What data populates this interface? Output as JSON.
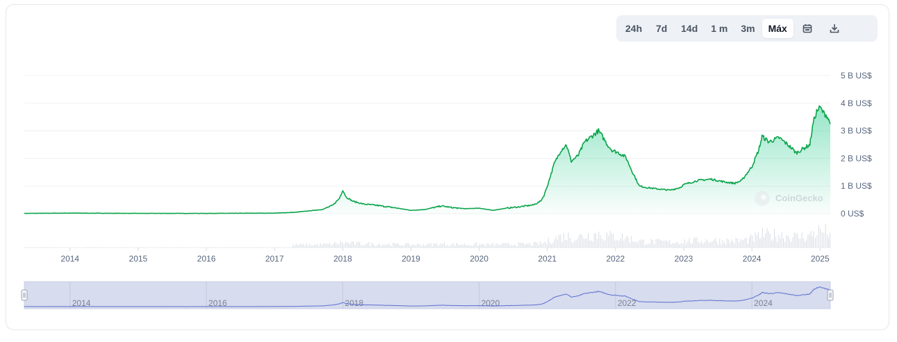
{
  "toolbar": {
    "ranges": [
      "24h",
      "7d",
      "14d",
      "1 m",
      "3m",
      "Máx"
    ],
    "active": "Máx",
    "icons": [
      "calendar-icon",
      "download-icon"
    ]
  },
  "watermark": "CoinGecko",
  "colors": {
    "line": "#0aa44a",
    "fill_top": "#16c784",
    "volume": "#d8dce3",
    "navigator_fill": "#d7dcee",
    "navigator_line": "#5b6fd0",
    "axis_text": "#58667e",
    "grid": "#eef0f3"
  },
  "chart_data": {
    "type": "area",
    "xlabel": "",
    "ylabel": "",
    "xlim": [
      2013.33,
      2025.15
    ],
    "ylim": [
      0,
      5
    ],
    "y_ticks": [
      "0 US$",
      "1 B US$",
      "2 B US$",
      "3 B US$",
      "4 B US$",
      "5 B US$"
    ],
    "x_ticks": [
      "2014",
      "2015",
      "2016",
      "2017",
      "2018",
      "2019",
      "2020",
      "2021",
      "2022",
      "2023",
      "2024",
      "2025"
    ],
    "navigator_ticks": [
      "2014",
      "2016",
      "2018",
      "2020",
      "2022",
      "2024"
    ],
    "series": [
      {
        "x": [
          2013.33,
          2014.0,
          2015.0,
          2016.0,
          2017.0,
          2017.3,
          2017.5,
          2017.7,
          2017.85,
          2017.95,
          2018.0,
          2018.05,
          2018.15,
          2018.3,
          2018.5,
          2018.8,
          2019.0,
          2019.2,
          2019.45,
          2019.6,
          2019.8,
          2020.0,
          2020.2,
          2020.4,
          2020.6,
          2020.8,
          2020.9,
          2020.95,
          2021.0,
          2021.1,
          2021.2,
          2021.28,
          2021.35,
          2021.45,
          2021.55,
          2021.65,
          2021.75,
          2021.82,
          2021.88,
          2021.95,
          2022.05,
          2022.15,
          2022.25,
          2022.35,
          2022.45,
          2022.6,
          2022.8,
          2022.95,
          2023.0,
          2023.2,
          2023.4,
          2023.6,
          2023.75,
          2023.85,
          2024.0,
          2024.1,
          2024.15,
          2024.25,
          2024.4,
          2024.55,
          2024.65,
          2024.75,
          2024.85,
          2024.9,
          2024.95,
          2025.0,
          2025.05,
          2025.1,
          2025.15
        ],
        "values": [
          0.01,
          0.02,
          0.01,
          0.01,
          0.02,
          0.05,
          0.1,
          0.15,
          0.3,
          0.55,
          0.85,
          0.6,
          0.45,
          0.35,
          0.3,
          0.2,
          0.12,
          0.15,
          0.28,
          0.22,
          0.18,
          0.2,
          0.12,
          0.2,
          0.25,
          0.32,
          0.45,
          0.65,
          1.0,
          1.8,
          2.3,
          2.5,
          1.9,
          2.1,
          2.6,
          2.8,
          3.0,
          2.75,
          2.5,
          2.3,
          2.2,
          2.05,
          1.5,
          1.0,
          0.95,
          0.9,
          0.85,
          0.95,
          1.05,
          1.2,
          1.25,
          1.15,
          1.1,
          1.2,
          1.7,
          2.3,
          2.8,
          2.6,
          2.75,
          2.45,
          2.2,
          2.35,
          2.5,
          3.3,
          3.7,
          3.85,
          3.65,
          3.55,
          3.25
        ]
      }
    ]
  }
}
